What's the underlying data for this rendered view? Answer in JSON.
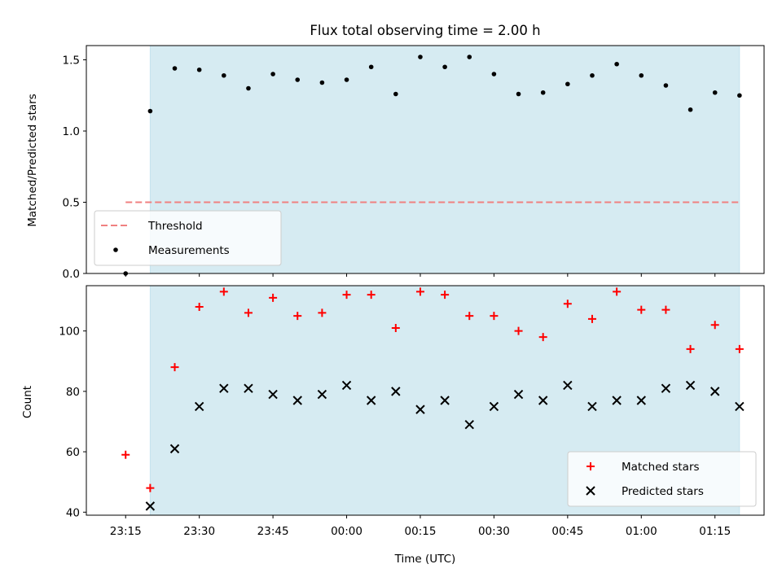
{
  "title": "Flux total observing time = 2.00 h",
  "xlabel": "Time (UTC)",
  "chart_data": [
    {
      "type": "scatter",
      "name": "ratio-panel",
      "ylabel": "Matched/Predicted stars",
      "xlim": [
        -8,
        130
      ],
      "ylim": [
        0,
        1.6
      ],
      "yticks": [
        0.0,
        0.5,
        1.0,
        1.5
      ],
      "yticklabels": [
        "0.0",
        "0.5",
        "1.0",
        "1.5"
      ],
      "shaded_span": [
        5,
        125
      ],
      "threshold": {
        "name": "Threshold",
        "y": 0.5,
        "x": [
          0,
          125
        ]
      },
      "series": [
        {
          "name": "Measurements",
          "x": [
            0,
            5,
            10,
            15,
            20,
            25,
            30,
            35,
            40,
            45,
            50,
            55,
            60,
            65,
            70,
            75,
            80,
            85,
            90,
            95,
            100,
            105,
            110,
            115,
            120,
            125
          ],
          "y": [
            0.0,
            1.14,
            1.44,
            1.43,
            1.39,
            1.3,
            1.4,
            1.36,
            1.34,
            1.36,
            1.45,
            1.26,
            1.52,
            1.45,
            1.52,
            1.4,
            1.26,
            1.27,
            1.33,
            1.39,
            1.47,
            1.39,
            1.32,
            1.15,
            1.27,
            1.25
          ]
        }
      ],
      "legend": {
        "location": "lower-left",
        "entries": [
          "Threshold",
          "Measurements"
        ]
      }
    },
    {
      "type": "scatter",
      "name": "count-panel",
      "ylabel": "Count",
      "xlim": [
        -8,
        130
      ],
      "ylim": [
        39,
        115
      ],
      "yticks": [
        40,
        60,
        80,
        100
      ],
      "yticklabels": [
        "40",
        "60",
        "80",
        "100"
      ],
      "shaded_span": [
        5,
        125
      ],
      "series": [
        {
          "name": "Matched stars",
          "marker": "+",
          "color": "#ff0000",
          "x": [
            0,
            5,
            10,
            15,
            20,
            25,
            30,
            35,
            40,
            45,
            50,
            55,
            60,
            65,
            70,
            75,
            80,
            85,
            90,
            95,
            100,
            105,
            110,
            115,
            120,
            125
          ],
          "y": [
            59,
            48,
            88,
            108,
            113,
            106,
            111,
            105,
            106,
            112,
            112,
            101,
            113,
            112,
            105,
            105,
            100,
            98,
            109,
            104,
            113,
            107,
            107,
            94,
            102,
            94
          ]
        },
        {
          "name": "Predicted stars",
          "marker": "x",
          "color": "#000000",
          "x": [
            5,
            10,
            15,
            20,
            25,
            30,
            35,
            40,
            45,
            50,
            55,
            60,
            65,
            70,
            75,
            80,
            85,
            90,
            95,
            100,
            105,
            110,
            115,
            120,
            125
          ],
          "y": [
            42,
            61,
            75,
            81,
            81,
            79,
            77,
            79,
            82,
            77,
            80,
            74,
            77,
            69,
            75,
            79,
            77,
            82,
            75,
            77,
            77,
            81,
            82,
            80,
            75
          ]
        }
      ],
      "legend": {
        "location": "lower-right",
        "entries": [
          "Matched stars",
          "Predicted stars"
        ]
      }
    }
  ],
  "xaxis": {
    "ticks": [
      0,
      15,
      30,
      45,
      60,
      75,
      90,
      105,
      120
    ],
    "ticklabels": [
      "23:15",
      "23:30",
      "23:45",
      "00:00",
      "00:15",
      "00:30",
      "00:45",
      "01:00",
      "01:15"
    ]
  },
  "colors": {
    "span": "#add8e6",
    "threshold": "#f08080",
    "matched": "#ff0000",
    "predicted": "#000000",
    "measurement": "#000000"
  }
}
